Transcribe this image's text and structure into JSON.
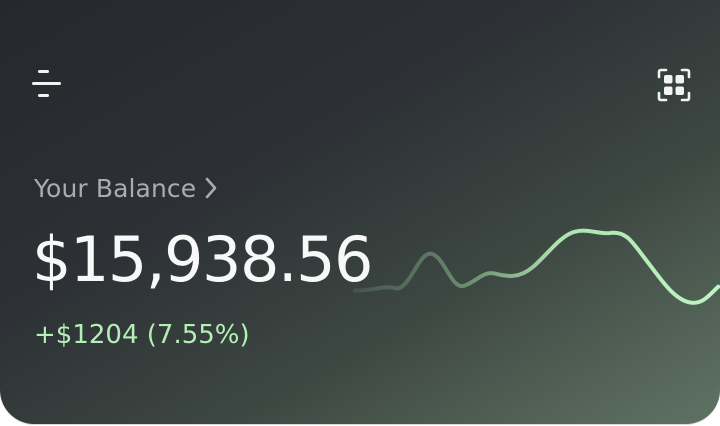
{
  "header": {
    "menu_icon": "menu-icon",
    "scan_icon": "scan-icon"
  },
  "balance": {
    "label": "Your Balance",
    "amount": "$15,938.56",
    "change": "+$1204 (7.55%)"
  },
  "colors": {
    "accent_green": "#b4f0b6",
    "card_dark": "#25282c",
    "card_green": "#5e7262"
  }
}
